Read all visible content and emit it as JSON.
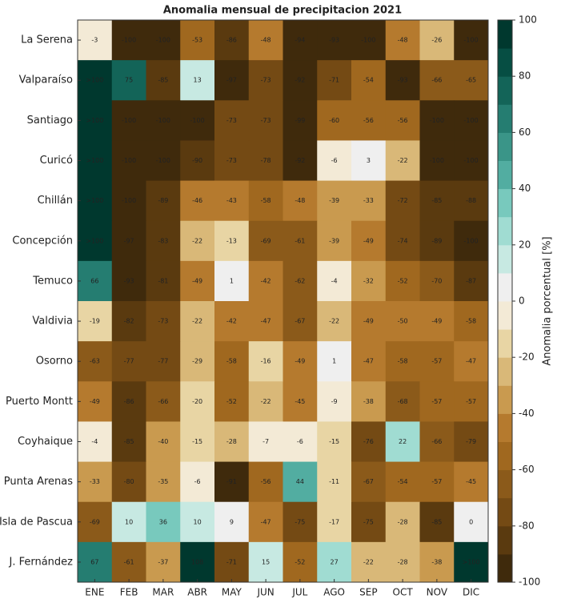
{
  "chart_data": {
    "type": "heatmap",
    "title": "Anomalia mensual de precipitacion 2021",
    "x": [
      "ENE",
      "FEB",
      "MAR",
      "ABR",
      "MAY",
      "JUN",
      "JUL",
      "AGO",
      "SEP",
      "OCT",
      "NOV",
      "DIC"
    ],
    "y": [
      "La Serena",
      "Valparaíso",
      "Santiago",
      "Curicó",
      "Chillán",
      "Concepción",
      "Temuco",
      "Valdivia",
      "Osorno",
      "Puerto Montt",
      "Coyhaique",
      "Punta Arenas",
      "Isla de Pascua",
      "J. Fernández"
    ],
    "values": [
      [
        -3,
        -100,
        -100,
        -53,
        -86,
        -48,
        -94,
        -93,
        -100,
        -48,
        -26,
        -100
      ],
      [
        100,
        75,
        -85,
        13,
        -97,
        -73,
        -92,
        -71,
        -54,
        -93,
        -66,
        -65
      ],
      [
        100,
        -100,
        -100,
        -100,
        -73,
        -73,
        -99,
        -60,
        -56,
        -56,
        -100,
        -100
      ],
      [
        100,
        -100,
        -100,
        -90,
        -73,
        -78,
        -92,
        -6,
        3,
        -22,
        -100,
        -100
      ],
      [
        100,
        -100,
        -89,
        -46,
        -43,
        -58,
        -48,
        -39,
        -33,
        -72,
        -85,
        -88
      ],
      [
        100,
        -97,
        -83,
        -22,
        -13,
        -69,
        -61,
        -39,
        -49,
        -74,
        -89,
        -100
      ],
      [
        66,
        -93,
        -81,
        -49,
        1,
        -42,
        -62,
        -4,
        -32,
        -52,
        -70,
        -87
      ],
      [
        -19,
        -82,
        -73,
        -22,
        -42,
        -47,
        -67,
        -22,
        -49,
        -50,
        -49,
        -58
      ],
      [
        -63,
        -77,
        -77,
        -29,
        -58,
        -16,
        -49,
        1,
        -47,
        -58,
        -57,
        -47
      ],
      [
        -49,
        -86,
        -66,
        -20,
        -52,
        -22,
        -45,
        -9,
        -38,
        -68,
        -57,
        -57
      ],
      [
        -4,
        -85,
        -40,
        -15,
        -28,
        -7,
        -6,
        -15,
        -76,
        22,
        -66,
        -79
      ],
      [
        -33,
        -80,
        -35,
        -6,
        -91,
        -56,
        44,
        -11,
        -67,
        -54,
        -57,
        -45
      ],
      [
        -69,
        10,
        36,
        10,
        9,
        -47,
        -75,
        -17,
        -75,
        -28,
        -85,
        0
      ],
      [
        67,
        -61,
        -37,
        108,
        -71,
        15,
        -52,
        27,
        -22,
        -28,
        -38,
        100
      ]
    ],
    "value_labels": [
      [
        "-3",
        "-100",
        "-100",
        "-53",
        "-86",
        "-48",
        "-94",
        "-93",
        "-100",
        "-48",
        "-26",
        "-100"
      ],
      [
        ">100",
        "75",
        "-85",
        "13",
        "-97",
        "-73",
        "-92",
        "-71",
        "-54",
        "-93",
        "-66",
        "-65"
      ],
      [
        ">100",
        "-100",
        "-100",
        "-100",
        "-73",
        "-73",
        "-99",
        "-60",
        "-56",
        "-56",
        "-100",
        "-100"
      ],
      [
        ">100",
        "-100",
        "-100",
        "-90",
        "-73",
        "-78",
        "-92",
        "-6",
        "3",
        "-22",
        "-100",
        "-100"
      ],
      [
        ">100",
        "-100",
        "-89",
        "-46",
        "-43",
        "-58",
        "-48",
        "-39",
        "-33",
        "-72",
        "-85",
        "-88"
      ],
      [
        ">100",
        "-97",
        "-83",
        "-22",
        "-13",
        "-69",
        "-61",
        "-39",
        "-49",
        "-74",
        "-89",
        "-100"
      ],
      [
        "66",
        "-93",
        "-81",
        "-49",
        "1",
        "-42",
        "-62",
        "-4",
        "-32",
        "-52",
        "-70",
        "-87"
      ],
      [
        "-19",
        "-82",
        "-73",
        "-22",
        "-42",
        "-47",
        "-67",
        "-22",
        "-49",
        "-50",
        "-49",
        "-58"
      ],
      [
        "-63",
        "-77",
        "-77",
        "-29",
        "-58",
        "-16",
        "-49",
        "1",
        "-47",
        "-58",
        "-57",
        "-47"
      ],
      [
        "-49",
        "-86",
        "-66",
        "-20",
        "-52",
        "-22",
        "-45",
        "-9",
        "-38",
        "-68",
        "-57",
        "-57"
      ],
      [
        "-4",
        "-85",
        "-40",
        "-15",
        "-28",
        "-7",
        "-6",
        "-15",
        "-76",
        "22",
        "-66",
        "-79"
      ],
      [
        "-33",
        "-80",
        "-35",
        "-6",
        "-91",
        "-56",
        "44",
        "-11",
        "-67",
        "-54",
        "-57",
        "-45"
      ],
      [
        "-69",
        "10",
        "36",
        "10",
        "9",
        "-47",
        "-75",
        "-17",
        "-75",
        "-28",
        "-85",
        "0"
      ],
      [
        "67",
        "-61",
        "-37",
        "108",
        "-71",
        "15",
        "-52",
        "27",
        "-22",
        "-28",
        "-38",
        ">100"
      ]
    ],
    "zlim": [
      -100,
      100
    ],
    "colors": [
      "#3f2a0c",
      "#5a3a0f",
      "#744a14",
      "#8b5a1a",
      "#a0681f",
      "#b57a2e",
      "#c99a4f",
      "#d9b878",
      "#e8d5a4",
      "#f3ead6",
      "#efefef",
      "#c7e9e2",
      "#a0dcd2",
      "#78c9bd",
      "#52ada1",
      "#3a9588",
      "#257d71",
      "#136458",
      "#064e43",
      "#00382e"
    ],
    "colorbar_ticks": [
      -100,
      -80,
      -60,
      -40,
      -20,
      0,
      20,
      40,
      60,
      80,
      100
    ],
    "colorbar_label": "Anomalia porcentual [%]"
  }
}
